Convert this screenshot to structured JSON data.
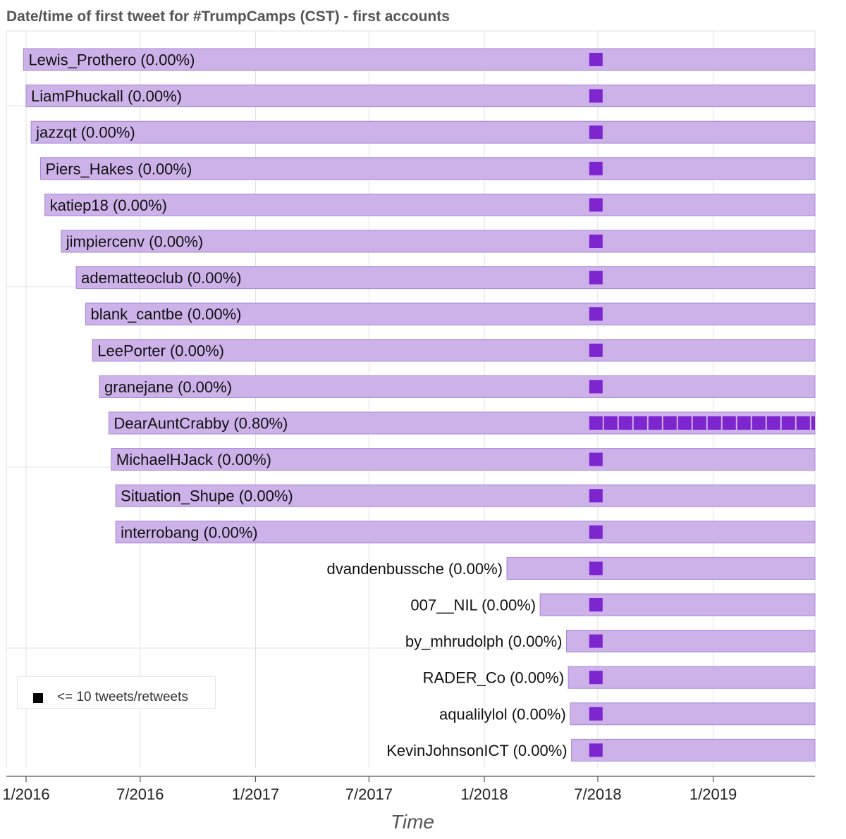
{
  "chart_data": {
    "type": "timeline",
    "title": "Date/time of first tweet for #TrumpCamps (CST) - first accounts",
    "xlabel": "Time",
    "x_ticks": [
      "1/2016",
      "7/2016",
      "1/2017",
      "7/2017",
      "1/2018",
      "7/2018",
      "1/2019"
    ],
    "x_range": [
      "2015-12-01",
      "2019-07-15"
    ],
    "legend": {
      "label": "<= 10 tweets/retweets",
      "position": "bottom-left"
    },
    "colors": {
      "bar": "#cdb2ea",
      "bar_border": "#a685d4",
      "mark": "#7d25cf",
      "grid": "#e1e1e1"
    },
    "mark_start_date": "2018-06-28",
    "accounts": [
      {
        "name": "Lewis_Prothero",
        "pct": "(0.00%)",
        "start": "2015-12-28",
        "marks": 1
      },
      {
        "name": "LiamPhuckall",
        "pct": "(0.00%)",
        "start": "2016-01-01",
        "marks": 1
      },
      {
        "name": "jazzqt",
        "pct": "(0.00%)",
        "start": "2016-01-09",
        "marks": 1
      },
      {
        "name": "Piers_Hakes",
        "pct": "(0.00%)",
        "start": "2016-01-24",
        "marks": 1
      },
      {
        "name": "katiep18",
        "pct": "(0.00%)",
        "start": "2016-01-31",
        "marks": 1
      },
      {
        "name": "jimpiercenv",
        "pct": "(0.00%)",
        "start": "2016-02-26",
        "marks": 1
      },
      {
        "name": "adematteoclub",
        "pct": "(0.00%)",
        "start": "2016-03-21",
        "marks": 1
      },
      {
        "name": "blank_cantbe",
        "pct": "(0.00%)",
        "start": "2016-04-05",
        "marks": 1
      },
      {
        "name": "LeePorter",
        "pct": "(0.00%)",
        "start": "2016-04-16",
        "marks": 1
      },
      {
        "name": "granejane",
        "pct": "(0.00%)",
        "start": "2016-04-27",
        "marks": 1
      },
      {
        "name": "DearAuntCrabby",
        "pct": "(0.80%)",
        "start": "2016-05-12",
        "marks": 16
      },
      {
        "name": "MichaelHJack",
        "pct": "(0.00%)",
        "start": "2016-05-16",
        "marks": 1
      },
      {
        "name": "Situation_Shupe",
        "pct": "(0.00%)",
        "start": "2016-05-23",
        "marks": 1
      },
      {
        "name": "interrobang",
        "pct": "(0.00%)",
        "start": "2016-05-23",
        "marks": 1
      },
      {
        "name": "dvandenbussche",
        "pct": "(0.00%)",
        "start": "2018-02-06",
        "marks": 1
      },
      {
        "name": "007__NIL",
        "pct": "(0.00%)",
        "start": "2018-03-31",
        "marks": 1
      },
      {
        "name": "by_mhrudolph",
        "pct": "(0.00%)",
        "start": "2018-05-12",
        "marks": 1
      },
      {
        "name": "RADER_Co",
        "pct": "(0.00%)",
        "start": "2018-05-15",
        "marks": 1
      },
      {
        "name": "aqualilylol",
        "pct": "(0.00%)",
        "start": "2018-05-18",
        "marks": 1
      },
      {
        "name": "KevinJohnsonICT",
        "pct": "(0.00%)",
        "start": "2018-05-20",
        "marks": 1
      }
    ]
  }
}
